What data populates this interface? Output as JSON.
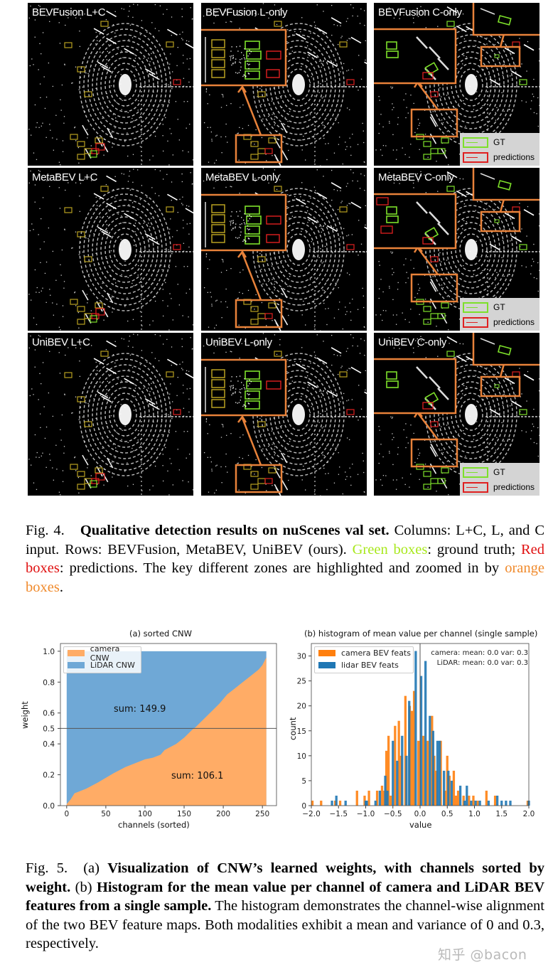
{
  "figure4": {
    "columns": [
      "L+C",
      "L-only",
      "C-only"
    ],
    "rows": [
      "BEVFusion",
      "MetaBEV",
      "UniBEV"
    ],
    "panels": [
      {
        "title": "BEVFusion L+C"
      },
      {
        "title": "BEVFusion L-only"
      },
      {
        "title": "BEVFusion C-only"
      },
      {
        "title": "MetaBEV L+C"
      },
      {
        "title": "MetaBEV L-only"
      },
      {
        "title": "MetaBEV C-only"
      },
      {
        "title": "UniBEV L+C"
      },
      {
        "title": "UniBEV L-only"
      },
      {
        "title": "UniBEV C-only"
      }
    ],
    "legend": {
      "gt": "GT",
      "predictions": "predictions"
    },
    "colors": {
      "gt_box": "#7de02a",
      "pred_box": "#e02020",
      "zoom_box": "#e8823a",
      "matched_box": "#b8a020",
      "background": "#000000",
      "points": "#ffffff"
    },
    "caption": {
      "label": "Fig. 4.",
      "bold": "Qualitative detection results on nuScenes val set.",
      "text1": " Columns: L+C, L, and C input. Rows: BEVFusion, MetaBEV, UniBEV (ours). ",
      "green": "Green boxes",
      "text2": ": ground truth; ",
      "red": "Red boxes",
      "text3": ": predictions. The key different zones are highlighted and zoomed in by ",
      "orange": "orange boxes",
      "text4": "."
    }
  },
  "figure5": {
    "caption": {
      "label": "Fig. 5.",
      "a": "(a) ",
      "bold_a": "Visualization of CNW’s learned weights, with channels sorted by weight.",
      "b": " (b) ",
      "bold_b": "Histogram for the mean value per channel of camera and LiDAR BEV features from a single sample.",
      "text": " The histogram demonstrates the channel-wise alignment of the two BEV feature maps. Both modalities exhibit a mean and variance of 0 and 0.3, respectively."
    }
  },
  "watermark": "知乎 @bacon",
  "chart_data": [
    {
      "type": "area",
      "title": "(a) sorted CNW",
      "xlabel": "channels (sorted)",
      "ylabel": "weight",
      "xlim": [
        -8,
        268
      ],
      "ylim": [
        0,
        1.05
      ],
      "xticks": [
        0,
        50,
        100,
        150,
        200,
        250
      ],
      "yticks": [
        0.0,
        0.2,
        0.4,
        0.5,
        0.6,
        0.8,
        1.0
      ],
      "hline": 0.5,
      "grid": false,
      "legend_position": "upper left",
      "series": [
        {
          "name": "camera CNW",
          "color": "#ffac66",
          "x": [
            0,
            5,
            10,
            15,
            25,
            40,
            50,
            60,
            75,
            90,
            100,
            110,
            120,
            125,
            140,
            150,
            160,
            165,
            175,
            185,
            195,
            205,
            215,
            225,
            235,
            245,
            250,
            253,
            255
          ],
          "values": [
            0.01,
            0.04,
            0.08,
            0.09,
            0.11,
            0.15,
            0.18,
            0.21,
            0.25,
            0.28,
            0.3,
            0.31,
            0.33,
            0.36,
            0.4,
            0.44,
            0.49,
            0.51,
            0.56,
            0.61,
            0.66,
            0.72,
            0.76,
            0.8,
            0.84,
            0.88,
            0.91,
            0.94,
            0.96
          ]
        },
        {
          "name": "LiDAR CNW",
          "color": "#6fa8d6",
          "note": "stacked; 1 - camera CNW, top at 1.0"
        }
      ],
      "annotations": [
        {
          "text": "sum: 149.9",
          "x": 60,
          "y": 0.62
        },
        {
          "text": "sum: 106.1",
          "x": 133,
          "y": 0.19
        }
      ]
    },
    {
      "type": "bar",
      "title": "(b) histogram of mean value per channel (single sample)",
      "xlabel": "value",
      "ylabel": "count",
      "xlim": [
        -2.0,
        2.0
      ],
      "ylim": [
        0,
        32.5
      ],
      "xticks": [
        -2.0,
        -1.5,
        -1.0,
        -0.5,
        0.0,
        0.5,
        1.0,
        1.5,
        2.0
      ],
      "yticks": [
        0,
        5,
        10,
        15,
        20,
        25,
        30
      ],
      "vline": 0.0,
      "legend_position": "upper left",
      "annotations": [
        "camera: mean: 0.0 var: 0.3",
        "LiDAR: mean: 0.0 var: 0.3"
      ],
      "series": [
        {
          "name": "camera BEV feats",
          "color": "#ff7f0e",
          "x": [
            -1.98,
            -1.82,
            -1.56,
            -1.47,
            -1.16,
            -1.02,
            -0.94,
            -0.79,
            -0.7,
            -0.66,
            -0.62,
            -0.58,
            -0.54,
            -0.46,
            -0.39,
            -0.35,
            -0.27,
            -0.19,
            -0.15,
            -0.11,
            -0.03,
            0.06,
            0.14,
            0.22,
            0.26,
            0.3,
            0.38,
            0.46,
            0.5,
            0.54,
            0.62,
            0.66,
            0.7,
            0.8,
            0.9,
            0.98,
            1.06,
            1.22,
            1.38,
            1.98
          ],
          "values": [
            1,
            1,
            1,
            1,
            3,
            2,
            3,
            3,
            4,
            3,
            11,
            14,
            2,
            16,
            17,
            10,
            22,
            20,
            19,
            23,
            13,
            14,
            13,
            18,
            10,
            7,
            13,
            3,
            10,
            6,
            7,
            2,
            3,
            2,
            2,
            2,
            1,
            3,
            2,
            1
          ]
        },
        {
          "name": "lidar BEV feats",
          "color": "#1f77b4",
          "x": [
            -1.62,
            -1.54,
            -1.37,
            -1.0,
            -0.98,
            -0.82,
            -0.74,
            -0.64,
            -0.6,
            -0.5,
            -0.42,
            -0.33,
            -0.25,
            -0.2,
            -0.08,
            0.02,
            0.1,
            0.18,
            0.24,
            0.32,
            0.36,
            0.44,
            0.52,
            0.58,
            0.74,
            0.82,
            0.86,
            0.94,
            1.02,
            1.1,
            1.26,
            1.42,
            1.5,
            1.58,
            1.66,
            2.0
          ],
          "values": [
            1,
            2,
            1,
            1,
            1,
            1,
            3,
            6,
            3,
            13,
            9,
            14,
            10,
            21,
            31,
            26,
            29,
            18,
            15,
            13,
            13,
            7,
            7,
            5,
            4,
            1,
            4,
            1,
            1,
            1,
            1,
            2,
            1,
            1,
            1,
            1
          ]
        }
      ]
    }
  ]
}
